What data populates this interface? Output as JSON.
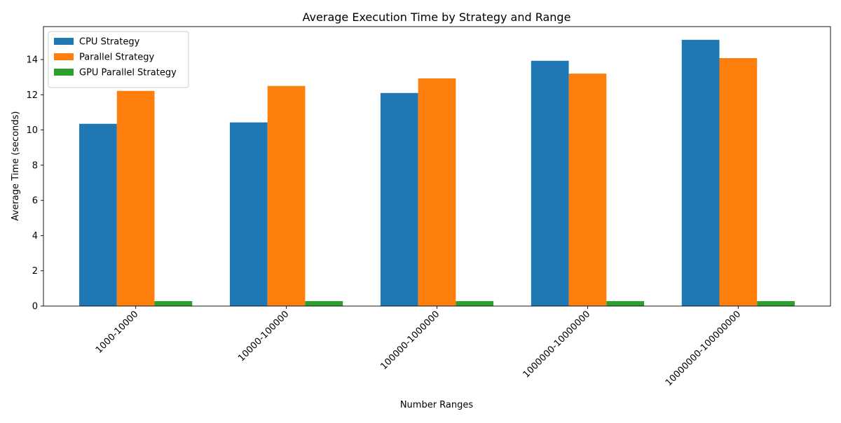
{
  "chart_data": {
    "type": "bar",
    "title": "Average Execution Time by Strategy and Range",
    "xlabel": "Number Ranges",
    "ylabel": "Average Time (seconds)",
    "categories": [
      "1000-10000",
      "10000-100000",
      "100000-1000000",
      "1000000-10000000",
      "10000000-100000000"
    ],
    "series": [
      {
        "name": "CPU Strategy",
        "color": "#1f77b4",
        "values": [
          10.35,
          10.43,
          12.1,
          13.93,
          15.12
        ]
      },
      {
        "name": "Parallel Strategy",
        "color": "#ff7f0e",
        "values": [
          12.22,
          12.5,
          12.93,
          13.2,
          14.08
        ]
      },
      {
        "name": "GPU Parallel Strategy",
        "color": "#2ca02c",
        "values": [
          0.28,
          0.28,
          0.28,
          0.28,
          0.28
        ]
      }
    ],
    "ylim": [
      0,
      15.87
    ],
    "yticks": [
      0,
      2,
      4,
      6,
      8,
      10,
      12,
      14
    ],
    "legend_position": "upper-left",
    "grid": false
  }
}
